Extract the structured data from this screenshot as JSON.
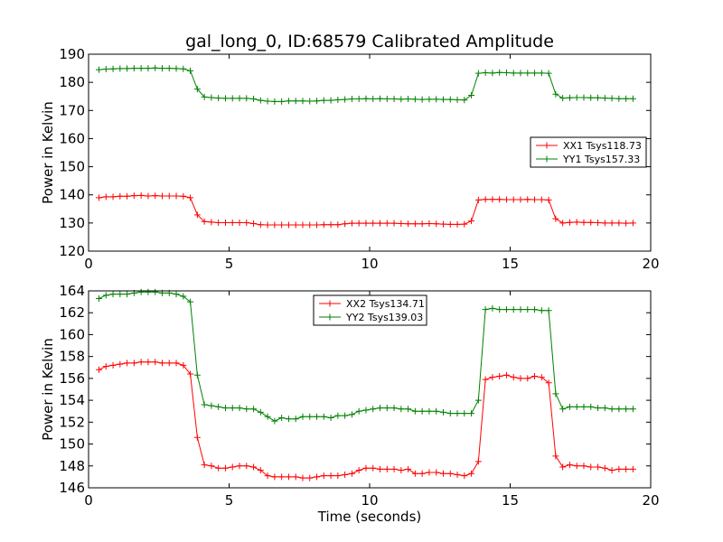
{
  "chart_data": [
    {
      "type": "line",
      "title": "gal_long_0, ID:68579 Calibrated Amplitude",
      "xlabel": "",
      "ylabel": "Power in Kelvin",
      "xlim": [
        0,
        20
      ],
      "ylim": [
        120,
        190
      ],
      "xticks": [
        "0",
        "5",
        "10",
        "15",
        "20"
      ],
      "yticks": [
        "120",
        "130",
        "140",
        "150",
        "160",
        "170",
        "180",
        "190"
      ],
      "legend_position": "center-right",
      "grid": false,
      "x": [
        0.37,
        0.62,
        0.87,
        1.12,
        1.37,
        1.62,
        1.87,
        2.12,
        2.37,
        2.62,
        2.87,
        3.12,
        3.37,
        3.62,
        3.87,
        4.12,
        4.37,
        4.62,
        4.87,
        5.12,
        5.37,
        5.62,
        5.87,
        6.12,
        6.37,
        6.62,
        6.87,
        7.12,
        7.37,
        7.62,
        7.87,
        8.12,
        8.37,
        8.62,
        8.87,
        9.12,
        9.37,
        9.62,
        9.87,
        10.12,
        10.37,
        10.62,
        10.87,
        11.12,
        11.37,
        11.62,
        11.87,
        12.12,
        12.37,
        12.62,
        12.87,
        13.12,
        13.37,
        13.62,
        13.87,
        14.12,
        14.37,
        14.62,
        14.87,
        15.12,
        15.37,
        15.62,
        15.87,
        16.12,
        16.37,
        16.62,
        16.87,
        17.12,
        17.37,
        17.62,
        17.87,
        18.12,
        18.37,
        18.62,
        18.87,
        19.12,
        19.37
      ],
      "series": [
        {
          "name": "XX1 Tsys118.73",
          "color": "#ff0000",
          "values": [
            139.0,
            139.3,
            139.3,
            139.5,
            139.5,
            139.7,
            139.8,
            139.6,
            139.7,
            139.6,
            139.6,
            139.6,
            139.5,
            139.0,
            132.9,
            130.5,
            130.3,
            130.1,
            130.1,
            130.1,
            130.1,
            130.1,
            129.8,
            129.4,
            129.3,
            129.3,
            129.3,
            129.3,
            129.3,
            129.3,
            129.3,
            129.3,
            129.4,
            129.4,
            129.4,
            129.7,
            129.9,
            129.9,
            129.9,
            129.9,
            129.9,
            129.9,
            129.9,
            129.8,
            129.7,
            129.7,
            129.7,
            129.8,
            129.7,
            129.6,
            129.5,
            129.5,
            129.6,
            130.7,
            138.2,
            138.4,
            138.4,
            138.4,
            138.3,
            138.3,
            138.3,
            138.4,
            138.3,
            138.3,
            138.2,
            131.5,
            130.0,
            130.2,
            130.3,
            130.2,
            130.2,
            130.1,
            130.0,
            130.0,
            130.0,
            129.9,
            130.0
          ]
        },
        {
          "name": "YY1 Tsys157.33",
          "color": "#008000",
          "values": [
            184.5,
            184.7,
            184.8,
            184.9,
            184.9,
            185.0,
            185.0,
            185.0,
            185.1,
            185.0,
            185.0,
            184.9,
            184.8,
            184.1,
            177.6,
            174.8,
            174.6,
            174.4,
            174.3,
            174.3,
            174.3,
            174.3,
            174.1,
            173.6,
            173.3,
            173.2,
            173.2,
            173.4,
            173.4,
            173.4,
            173.3,
            173.4,
            173.6,
            173.6,
            173.8,
            173.9,
            174.1,
            174.1,
            174.2,
            174.1,
            174.2,
            174.1,
            174.1,
            174.0,
            174.1,
            174.0,
            173.9,
            174.0,
            174.0,
            173.9,
            173.9,
            173.8,
            173.7,
            175.4,
            183.2,
            183.4,
            183.3,
            183.5,
            183.4,
            183.3,
            183.3,
            183.3,
            183.3,
            183.3,
            183.2,
            175.8,
            174.4,
            174.5,
            174.6,
            174.6,
            174.5,
            174.5,
            174.4,
            174.3,
            174.2,
            174.2,
            174.2
          ]
        }
      ]
    },
    {
      "type": "line",
      "title": "",
      "xlabel": "Time (seconds)",
      "ylabel": "Power in Kelvin",
      "xlim": [
        0,
        20
      ],
      "ylim": [
        146,
        164
      ],
      "xticks": [
        "0",
        "5",
        "10",
        "15",
        "20"
      ],
      "yticks": [
        "146",
        "148",
        "150",
        "152",
        "154",
        "156",
        "158",
        "160",
        "162",
        "164"
      ],
      "legend_position": "top-center",
      "grid": false,
      "x": [
        0.37,
        0.62,
        0.87,
        1.12,
        1.37,
        1.62,
        1.87,
        2.12,
        2.37,
        2.62,
        2.87,
        3.12,
        3.37,
        3.62,
        3.87,
        4.12,
        4.37,
        4.62,
        4.87,
        5.12,
        5.37,
        5.62,
        5.87,
        6.12,
        6.37,
        6.62,
        6.87,
        7.12,
        7.37,
        7.62,
        7.87,
        8.12,
        8.37,
        8.62,
        8.87,
        9.12,
        9.37,
        9.62,
        9.87,
        10.12,
        10.37,
        10.62,
        10.87,
        11.12,
        11.37,
        11.62,
        11.87,
        12.12,
        12.37,
        12.62,
        12.87,
        13.12,
        13.37,
        13.62,
        13.87,
        14.12,
        14.37,
        14.62,
        14.87,
        15.12,
        15.37,
        15.62,
        15.87,
        16.12,
        16.37,
        16.62,
        16.87,
        17.12,
        17.37,
        17.62,
        17.87,
        18.12,
        18.37,
        18.62,
        18.87,
        19.12,
        19.37
      ],
      "series": [
        {
          "name": "XX2 Tsys134.71",
          "color": "#ff0000",
          "values": [
            156.8,
            157.1,
            157.2,
            157.3,
            157.4,
            157.4,
            157.5,
            157.5,
            157.5,
            157.4,
            157.4,
            157.4,
            157.2,
            156.4,
            150.6,
            148.1,
            148.0,
            147.8,
            147.8,
            147.9,
            148.0,
            148.0,
            147.9,
            147.6,
            147.1,
            147.0,
            147.0,
            147.0,
            147.0,
            146.9,
            146.9,
            147.0,
            147.1,
            147.1,
            147.1,
            147.2,
            147.3,
            147.6,
            147.8,
            147.8,
            147.7,
            147.7,
            147.7,
            147.6,
            147.7,
            147.3,
            147.3,
            147.4,
            147.4,
            147.3,
            147.3,
            147.2,
            147.1,
            147.3,
            148.4,
            155.9,
            156.1,
            156.2,
            156.3,
            156.1,
            156.0,
            156.0,
            156.2,
            156.1,
            155.6,
            148.9,
            147.9,
            148.1,
            148.0,
            148.0,
            147.9,
            147.9,
            147.8,
            147.6,
            147.7,
            147.7,
            147.7
          ]
        },
        {
          "name": "YY2 Tsys139.03",
          "color": "#008000",
          "values": [
            163.3,
            163.6,
            163.7,
            163.7,
            163.7,
            163.8,
            163.9,
            163.9,
            163.9,
            163.8,
            163.8,
            163.7,
            163.5,
            163.0,
            156.3,
            153.6,
            153.5,
            153.4,
            153.3,
            153.3,
            153.3,
            153.2,
            153.2,
            152.9,
            152.5,
            152.1,
            152.4,
            152.3,
            152.3,
            152.5,
            152.5,
            152.5,
            152.5,
            152.4,
            152.6,
            152.6,
            152.7,
            153.0,
            153.1,
            153.2,
            153.3,
            153.3,
            153.3,
            153.2,
            153.2,
            153.0,
            153.0,
            153.0,
            153.0,
            152.9,
            152.8,
            152.8,
            152.8,
            152.8,
            154.0,
            162.3,
            162.4,
            162.3,
            162.3,
            162.3,
            162.3,
            162.3,
            162.3,
            162.2,
            162.2,
            154.6,
            153.2,
            153.4,
            153.4,
            153.4,
            153.4,
            153.3,
            153.3,
            153.2,
            153.2,
            153.2,
            153.2
          ]
        }
      ]
    }
  ]
}
